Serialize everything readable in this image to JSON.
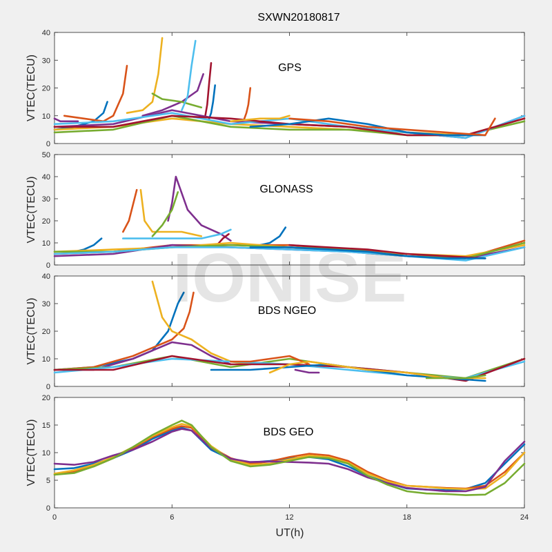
{
  "title": "SXWN20180817",
  "watermark": "IONISE",
  "colors": [
    "#0072bd",
    "#d95319",
    "#edb120",
    "#7e2f8e",
    "#77ac30",
    "#4dbeee",
    "#a2142f"
  ],
  "chart_data": [
    {
      "type": "line",
      "name": "GPS",
      "ylabel": "VTEC(TECU)",
      "ylim": [
        0,
        40
      ],
      "yticks": [
        0,
        10,
        20,
        30,
        40
      ],
      "xlim": [
        0,
        24
      ],
      "xticks": [
        0,
        6,
        12,
        18,
        24
      ],
      "series": [
        {
          "x": [
            0,
            1,
            2,
            2.5,
            2.7
          ],
          "y": [
            5,
            6,
            8,
            11,
            15
          ]
        },
        {
          "x": [
            0.5,
            1.5,
            2.5,
            3.0,
            3.5,
            3.7
          ],
          "y": [
            10,
            9,
            8,
            10,
            18,
            28
          ]
        },
        {
          "x": [
            3.7,
            4.5,
            5.0,
            5.3,
            5.5
          ],
          "y": [
            11,
            12,
            15,
            25,
            38
          ]
        },
        {
          "x": [
            4.5,
            5.5,
            6.5,
            7.3,
            7.6
          ],
          "y": [
            10,
            12,
            15,
            19,
            25
          ]
        },
        {
          "x": [
            5.0,
            5.5,
            6.5,
            7.0,
            7.5
          ],
          "y": [
            18,
            16,
            15,
            14,
            13
          ]
        },
        {
          "x": [
            6.5,
            6.8,
            7.0,
            7.2
          ],
          "y": [
            12,
            17,
            28,
            37
          ]
        },
        {
          "x": [
            7.7,
            7.8,
            7.9,
            8.0
          ],
          "y": [
            10,
            14,
            22,
            29
          ]
        },
        {
          "x": [
            7.9,
            8.0,
            8.1,
            8.2
          ],
          "y": [
            9,
            11,
            15,
            21
          ]
        },
        {
          "x": [
            9.7,
            9.8,
            9.9,
            10.0
          ],
          "y": [
            9,
            11,
            14,
            20
          ]
        },
        {
          "x": [
            0,
            3,
            6,
            9,
            12,
            15,
            18,
            21,
            24
          ],
          "y": [
            5,
            6,
            9,
            7,
            6,
            5,
            4,
            3,
            9
          ]
        },
        {
          "x": [
            0,
            3,
            6,
            9,
            12,
            15,
            18,
            21,
            24
          ],
          "y": [
            6,
            7,
            12,
            8,
            7,
            6,
            4,
            2,
            10
          ]
        },
        {
          "x": [
            0,
            3,
            6,
            9,
            12,
            15,
            18,
            21,
            24
          ],
          "y": [
            4,
            5,
            10,
            6,
            5,
            5,
            3,
            3,
            8
          ]
        },
        {
          "x": [
            0,
            3,
            6,
            9,
            12,
            15,
            18,
            21,
            24
          ],
          "y": [
            7,
            8,
            11,
            7,
            9,
            6,
            4,
            2,
            10
          ]
        },
        {
          "x": [
            0,
            3,
            6,
            9,
            12,
            15,
            18,
            21,
            24
          ],
          "y": [
            6,
            6,
            10,
            9,
            7,
            6,
            3,
            3,
            9
          ]
        },
        {
          "x": [
            10,
            12,
            14,
            16,
            18,
            20,
            22
          ],
          "y": [
            6,
            7,
            9,
            7,
            4,
            3,
            3
          ]
        },
        {
          "x": [
            12,
            14,
            16,
            18,
            20,
            22,
            22.5
          ],
          "y": [
            9,
            8,
            6,
            5,
            4,
            3,
            9
          ]
        },
        {
          "x": [
            9,
            10.5,
            11.5,
            12
          ],
          "y": [
            8,
            9,
            9,
            10
          ]
        },
        {
          "x": [
            0,
            0.3,
            0.8,
            1.2
          ],
          "y": [
            9,
            8,
            8,
            8
          ]
        }
      ]
    },
    {
      "type": "line",
      "name": "GLONASS",
      "ylabel": "VTEC(TECU)",
      "ylim": [
        0,
        50
      ],
      "yticks": [
        0,
        10,
        20,
        30,
        40,
        50
      ],
      "xlim": [
        0,
        24
      ],
      "xticks": [
        0,
        6,
        12,
        18,
        24
      ],
      "series": [
        {
          "x": [
            1.0,
            1.5,
            2.0,
            2.4
          ],
          "y": [
            6,
            7,
            9,
            12
          ]
        },
        {
          "x": [
            3.5,
            3.8,
            4.0,
            4.2
          ],
          "y": [
            15,
            20,
            27,
            34
          ]
        },
        {
          "x": [
            4.4,
            4.6,
            5.0,
            5.5,
            6.5,
            7.5
          ],
          "y": [
            34,
            20,
            15,
            15,
            15,
            13
          ]
        },
        {
          "x": [
            5.8,
            6.0,
            6.2,
            6.8,
            7.5,
            8.5,
            9.0
          ],
          "y": [
            20,
            28,
            40,
            25,
            18,
            14,
            11
          ]
        },
        {
          "x": [
            5.0,
            5.5,
            6.0,
            6.3
          ],
          "y": [
            13,
            18,
            25,
            33
          ]
        },
        {
          "x": [
            3.5,
            5.5,
            7.5,
            8.5,
            9.0
          ],
          "y": [
            12,
            12,
            12,
            14,
            16
          ]
        },
        {
          "x": [
            8.3,
            8.6,
            8.9
          ],
          "y": [
            9,
            12,
            14
          ]
        },
        {
          "x": [
            10.5,
            11.0,
            11.5,
            11.8
          ],
          "y": [
            9,
            10,
            13,
            17
          ]
        },
        {
          "x": [
            0,
            3,
            6,
            9,
            12,
            15,
            18,
            21,
            24
          ],
          "y": [
            5,
            6,
            9,
            9,
            9,
            7,
            5,
            3,
            11
          ]
        },
        {
          "x": [
            0,
            3,
            6,
            9,
            12,
            15,
            18,
            21,
            24
          ],
          "y": [
            6,
            7,
            8,
            10,
            8,
            6,
            5,
            4,
            9
          ]
        },
        {
          "x": [
            0,
            3,
            6,
            9,
            12,
            15,
            18,
            21,
            24
          ],
          "y": [
            4,
            5,
            9,
            8,
            7,
            6,
            4,
            3,
            8
          ]
        },
        {
          "x": [
            0,
            3,
            6,
            9,
            12,
            15,
            18,
            21,
            24
          ],
          "y": [
            6,
            6,
            8,
            9,
            8,
            7,
            4,
            3,
            10
          ]
        },
        {
          "x": [
            0,
            3,
            6,
            9,
            12,
            15,
            18,
            21,
            24
          ],
          "y": [
            5,
            6,
            8,
            8,
            7,
            6,
            4,
            2,
            8
          ]
        },
        {
          "x": [
            12,
            14,
            16,
            18,
            20,
            22
          ],
          "y": [
            9,
            8,
            7,
            5,
            4,
            3
          ]
        },
        {
          "x": [
            10,
            12,
            14,
            16,
            18,
            20,
            22
          ],
          "y": [
            8,
            8,
            7,
            6,
            4,
            3,
            3
          ]
        }
      ]
    },
    {
      "type": "line",
      "name": "BDS NGEO",
      "ylabel": "VTEC(TECU)",
      "ylim": [
        0,
        40
      ],
      "yticks": [
        0,
        10,
        20,
        30,
        40
      ],
      "xlim": [
        0,
        24
      ],
      "xticks": [
        0,
        6,
        12,
        18,
        24
      ],
      "series": [
        {
          "x": [
            0,
            2,
            4,
            5,
            5.8,
            6.3,
            6.6
          ],
          "y": [
            6,
            7,
            10,
            13,
            20,
            30,
            34
          ]
        },
        {
          "x": [
            0,
            2,
            4,
            6,
            6.6,
            6.9,
            7.1
          ],
          "y": [
            6,
            7,
            11,
            17,
            21,
            27,
            34
          ]
        },
        {
          "x": [
            5.0,
            5.5,
            6.0,
            7.0,
            8.0,
            9.0,
            10.0
          ],
          "y": [
            38,
            25,
            20,
            17,
            12,
            9,
            8
          ]
        },
        {
          "x": [
            0,
            2,
            4,
            6,
            7,
            8,
            9
          ],
          "y": [
            6,
            6,
            10,
            16,
            15,
            11,
            8
          ]
        },
        {
          "x": [
            0,
            3,
            6,
            9,
            12,
            15,
            18,
            21,
            24
          ],
          "y": [
            6,
            7,
            11,
            7,
            10,
            7,
            5,
            3,
            10
          ]
        },
        {
          "x": [
            0,
            3,
            6,
            9,
            12,
            15,
            18,
            21,
            24
          ],
          "y": [
            5,
            7,
            10,
            9,
            8,
            6,
            4,
            3,
            9
          ]
        },
        {
          "x": [
            0,
            3,
            6,
            9,
            12,
            15,
            18,
            21,
            24
          ],
          "y": [
            6,
            6,
            11,
            8,
            8,
            7,
            5,
            2,
            10
          ]
        },
        {
          "x": [
            8,
            10,
            12,
            14,
            16,
            18,
            20,
            22
          ],
          "y": [
            6,
            6,
            7,
            8,
            6,
            4,
            3,
            2
          ]
        },
        {
          "x": [
            9,
            10,
            11,
            12,
            13
          ],
          "y": [
            9,
            9,
            10,
            11,
            8
          ]
        },
        {
          "x": [
            11,
            12,
            13,
            14,
            16,
            18,
            20,
            22
          ],
          "y": [
            5,
            8,
            9,
            8,
            6,
            5,
            3,
            3
          ]
        },
        {
          "x": [
            12.3,
            13,
            13.5
          ],
          "y": [
            6,
            5,
            5
          ]
        },
        {
          "x": [
            19,
            20,
            21,
            22
          ],
          "y": [
            3,
            3,
            3,
            4
          ]
        }
      ]
    },
    {
      "type": "line",
      "name": "BDS GEO",
      "ylabel": "VTEC(TECU)",
      "ylim": [
        0,
        20
      ],
      "yticks": [
        0,
        5,
        10,
        15,
        20
      ],
      "xlim": [
        0,
        24
      ],
      "xticks": [
        0,
        6,
        12,
        18,
        24
      ],
      "xlabel": "UT(h)",
      "series": [
        {
          "x": [
            0,
            1,
            2,
            3,
            4,
            5,
            6,
            6.5,
            7,
            8,
            9,
            10,
            11,
            12,
            13,
            14,
            15,
            16,
            17,
            18,
            19,
            20,
            21,
            22,
            23,
            24
          ],
          "y": [
            7.0,
            7.2,
            8.0,
            9.0,
            10.5,
            12.5,
            14.0,
            14.5,
            14.0,
            10.5,
            8.8,
            8.2,
            8.5,
            9.0,
            9.2,
            8.8,
            7.5,
            5.8,
            4.5,
            3.5,
            3.3,
            3.2,
            3.4,
            4.5,
            8.0,
            11.5
          ]
        },
        {
          "x": [
            0,
            1,
            2,
            3,
            4,
            5,
            6,
            6.5,
            7,
            8,
            9,
            10,
            11,
            12,
            13,
            14,
            15,
            16,
            17,
            18,
            19,
            20,
            21,
            22,
            23,
            24
          ],
          "y": [
            6.0,
            6.5,
            7.5,
            9.0,
            10.8,
            12.8,
            14.3,
            14.8,
            14.5,
            11.0,
            9.0,
            8.0,
            8.4,
            9.2,
            9.8,
            9.5,
            8.5,
            6.5,
            5.0,
            4.0,
            3.8,
            3.6,
            3.5,
            4.0,
            6.5,
            10.0
          ]
        },
        {
          "x": [
            0,
            1,
            2,
            3,
            4,
            5,
            6,
            6.5,
            7,
            8,
            9,
            10,
            11,
            12,
            13,
            14,
            15,
            16,
            17,
            18,
            19,
            20,
            21,
            22,
            23,
            24
          ],
          "y": [
            6.2,
            6.8,
            7.8,
            9.2,
            11.0,
            13.0,
            14.6,
            15.2,
            14.8,
            11.2,
            8.8,
            7.8,
            8.0,
            8.8,
            9.5,
            9.2,
            8.2,
            6.2,
            4.8,
            4.0,
            3.8,
            3.5,
            3.4,
            3.5,
            6.0,
            10.0
          ]
        },
        {
          "x": [
            0,
            1,
            2,
            3,
            4,
            5,
            6,
            6.5,
            7,
            8,
            9,
            10,
            11,
            12,
            13,
            14,
            15,
            16,
            17,
            18,
            19,
            20,
            21,
            22,
            23,
            24
          ],
          "y": [
            8.0,
            7.8,
            8.3,
            9.5,
            10.5,
            12.0,
            13.8,
            14.3,
            14.0,
            10.8,
            8.9,
            8.3,
            8.4,
            8.3,
            8.2,
            8.0,
            7.0,
            5.5,
            4.5,
            3.6,
            3.3,
            3.0,
            3.0,
            3.8,
            8.5,
            12.0
          ]
        },
        {
          "x": [
            0,
            1,
            2,
            3,
            4,
            5,
            6,
            6.5,
            7,
            8,
            9,
            10,
            11,
            12,
            13,
            14,
            15,
            16,
            17,
            18,
            19,
            20,
            21,
            22,
            23,
            24
          ],
          "y": [
            6.0,
            6.3,
            7.5,
            9.0,
            11.0,
            13.2,
            15.0,
            15.8,
            15.0,
            11.0,
            8.5,
            7.5,
            7.8,
            8.5,
            9.2,
            9.0,
            8.0,
            5.8,
            4.2,
            3.0,
            2.6,
            2.5,
            2.3,
            2.4,
            4.5,
            8.0
          ]
        }
      ]
    }
  ]
}
